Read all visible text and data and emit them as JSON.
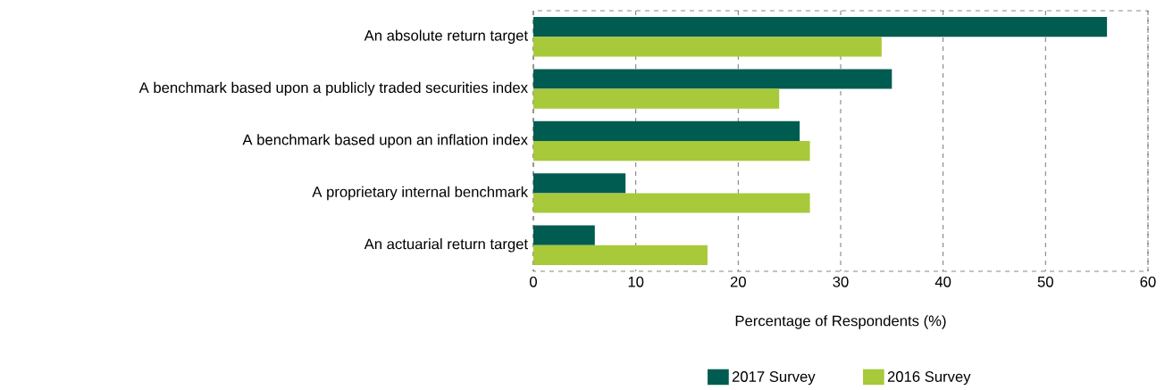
{
  "chart_data": {
    "type": "bar",
    "orientation": "horizontal",
    "categories": [
      "An absolute return target",
      "A benchmark based upon a publicly traded securities index",
      "A benchmark based upon an inflation index",
      "A proprietary internal benchmark",
      "An actuarial return target"
    ],
    "series": [
      {
        "name": "2017 Survey",
        "color": "#005c50",
        "values": [
          56,
          35,
          26,
          9,
          6
        ]
      },
      {
        "name": "2016 Survey",
        "color": "#a8c93a",
        "values": [
          34,
          24,
          27,
          27,
          17
        ]
      }
    ],
    "xlabel": "Percentage of Respondents (%)",
    "xlim": [
      0,
      60
    ],
    "xticks": [
      0,
      10,
      20,
      30,
      40,
      50,
      60
    ],
    "grid": "x",
    "legend": "bottom"
  }
}
